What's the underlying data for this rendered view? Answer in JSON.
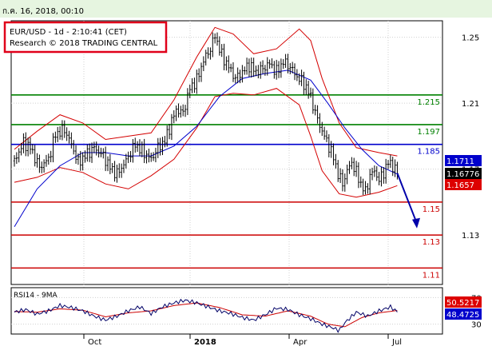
{
  "header": {
    "timestamp": "ก.ค. 16, 2018, 00:10"
  },
  "info_box": {
    "line1": "EUR/USD - 1d - 2:10:41 (CET)",
    "line2": "Research © 2018 TRADING CENTRAL"
  },
  "colors": {
    "header_bg": "#e6f5e0",
    "panel_bg": "#ffffff",
    "info_border": "#e0001a",
    "grid": "#d0d0d0",
    "candle": "#000000",
    "band": "#d40000",
    "ma": "#0000cc",
    "resistance": "#008000",
    "pivot": "#0000cc",
    "support": "#cc0000",
    "arrow": "#0000aa",
    "rsi_line": "#000066",
    "rsi_ma": "#cc0000",
    "tag_blue": "#0000cc",
    "tag_black": "#000000",
    "tag_red": "#dd0000",
    "tag_text": "#ffffff"
  },
  "chart_data": [
    {
      "type": "candlestick",
      "title": "EUR/USD - 1d",
      "ylim": [
        1.1,
        1.26
      ],
      "y_ticks": [
        "1.25",
        "1.21",
        "1.17",
        "1.13"
      ],
      "x_ticks": [
        "Oct",
        "2018",
        "Apr",
        "Jul"
      ],
      "price_path": [
        [
          0,
          1.175
        ],
        [
          8,
          1.186
        ],
        [
          14,
          1.183
        ],
        [
          22,
          1.171
        ],
        [
          30,
          1.176
        ],
        [
          36,
          1.191
        ],
        [
          44,
          1.194
        ],
        [
          50,
          1.185
        ],
        [
          56,
          1.174
        ],
        [
          62,
          1.178
        ],
        [
          70,
          1.183
        ],
        [
          78,
          1.178
        ],
        [
          84,
          1.171
        ],
        [
          90,
          1.167
        ],
        [
          98,
          1.175
        ],
        [
          106,
          1.185
        ],
        [
          112,
          1.181
        ],
        [
          120,
          1.176
        ],
        [
          126,
          1.183
        ],
        [
          132,
          1.187
        ],
        [
          138,
          1.199
        ],
        [
          142,
          1.206
        ],
        [
          148,
          1.204
        ],
        [
          154,
          1.219
        ],
        [
          160,
          1.224
        ],
        [
          166,
          1.236
        ],
        [
          172,
          1.243
        ],
        [
          176,
          1.251
        ],
        [
          182,
          1.239
        ],
        [
          188,
          1.232
        ],
        [
          194,
          1.225
        ],
        [
          200,
          1.229
        ],
        [
          206,
          1.233
        ],
        [
          212,
          1.229
        ],
        [
          218,
          1.231
        ],
        [
          224,
          1.234
        ],
        [
          230,
          1.229
        ],
        [
          236,
          1.235
        ],
        [
          242,
          1.232
        ],
        [
          248,
          1.226
        ],
        [
          254,
          1.222
        ],
        [
          260,
          1.214
        ],
        [
          264,
          1.204
        ],
        [
          270,
          1.193
        ],
        [
          276,
          1.184
        ],
        [
          280,
          1.177
        ],
        [
          284,
          1.167
        ],
        [
          288,
          1.161
        ],
        [
          292,
          1.169
        ],
        [
          296,
          1.174
        ],
        [
          300,
          1.168
        ],
        [
          304,
          1.161
        ],
        [
          308,
          1.156
        ],
        [
          312,
          1.166
        ],
        [
          316,
          1.169
        ],
        [
          320,
          1.163
        ],
        [
          324,
          1.168
        ],
        [
          328,
          1.174
        ],
        [
          332,
          1.172
        ],
        [
          336,
          1.1675
        ]
      ],
      "moving_average": [
        [
          0,
          1.135
        ],
        [
          20,
          1.158
        ],
        [
          40,
          1.172
        ],
        [
          60,
          1.18
        ],
        [
          80,
          1.18
        ],
        [
          100,
          1.178
        ],
        [
          120,
          1.178
        ],
        [
          140,
          1.184
        ],
        [
          160,
          1.196
        ],
        [
          180,
          1.214
        ],
        [
          200,
          1.225
        ],
        [
          220,
          1.228
        ],
        [
          240,
          1.23
        ],
        [
          260,
          1.224
        ],
        [
          275,
          1.21
        ],
        [
          290,
          1.195
        ],
        [
          305,
          1.182
        ],
        [
          320,
          1.172
        ],
        [
          336,
          1.167
        ]
      ],
      "band_upper": [
        [
          0,
          1.182
        ],
        [
          20,
          1.193
        ],
        [
          40,
          1.203
        ],
        [
          60,
          1.198
        ],
        [
          80,
          1.188
        ],
        [
          100,
          1.19
        ],
        [
          120,
          1.192
        ],
        [
          140,
          1.212
        ],
        [
          160,
          1.238
        ],
        [
          176,
          1.256
        ],
        [
          192,
          1.252
        ],
        [
          210,
          1.24
        ],
        [
          230,
          1.243
        ],
        [
          250,
          1.255
        ],
        [
          260,
          1.248
        ],
        [
          270,
          1.225
        ],
        [
          285,
          1.198
        ],
        [
          300,
          1.183
        ],
        [
          320,
          1.18
        ],
        [
          336,
          1.178
        ]
      ],
      "band_lower": [
        [
          0,
          1.162
        ],
        [
          20,
          1.165
        ],
        [
          40,
          1.171
        ],
        [
          60,
          1.168
        ],
        [
          80,
          1.161
        ],
        [
          100,
          1.158
        ],
        [
          120,
          1.166
        ],
        [
          140,
          1.176
        ],
        [
          160,
          1.195
        ],
        [
          176,
          1.214
        ],
        [
          192,
          1.216
        ],
        [
          210,
          1.215
        ],
        [
          230,
          1.219
        ],
        [
          250,
          1.209
        ],
        [
          260,
          1.19
        ],
        [
          270,
          1.169
        ],
        [
          285,
          1.155
        ],
        [
          300,
          1.153
        ],
        [
          320,
          1.156
        ],
        [
          336,
          1.16
        ]
      ],
      "levels": [
        {
          "value": 1.215,
          "label": "1.215",
          "kind": "resistance"
        },
        {
          "value": 1.197,
          "label": "1.197",
          "kind": "resistance"
        },
        {
          "value": 1.185,
          "label": "1.185",
          "kind": "pivot"
        },
        {
          "value": 1.15,
          "label": "1.15",
          "kind": "support"
        },
        {
          "value": 1.13,
          "label": "1.13",
          "kind": "support"
        },
        {
          "value": 1.11,
          "label": "1.11",
          "kind": "support"
        }
      ],
      "price_tags": [
        {
          "value": 1.1711,
          "label": "1.1711",
          "color": "tag_blue"
        },
        {
          "value": 1.16776,
          "label": "1.16776",
          "color": "tag_black"
        },
        {
          "value": 1.1657,
          "label": "1.1657",
          "color": "tag_red"
        }
      ],
      "forecast_arrow": {
        "from": [
          336,
          1.1675
        ],
        "to": [
          342,
          1.137
        ]
      }
    },
    {
      "type": "line",
      "title": "RSI14 - 9MA",
      "ylim": [
        15,
        85
      ],
      "y_ticks": [
        "70",
        "30"
      ],
      "rsi": [
        [
          0,
          48
        ],
        [
          10,
          52
        ],
        [
          20,
          45
        ],
        [
          30,
          50
        ],
        [
          40,
          58
        ],
        [
          50,
          55
        ],
        [
          60,
          50
        ],
        [
          70,
          42
        ],
        [
          80,
          36
        ],
        [
          90,
          42
        ],
        [
          100,
          50
        ],
        [
          110,
          56
        ],
        [
          120,
          46
        ],
        [
          130,
          56
        ],
        [
          140,
          62
        ],
        [
          150,
          66
        ],
        [
          160,
          62
        ],
        [
          170,
          56
        ],
        [
          180,
          50
        ],
        [
          190,
          46
        ],
        [
          200,
          40
        ],
        [
          210,
          36
        ],
        [
          220,
          44
        ],
        [
          230,
          54
        ],
        [
          240,
          52
        ],
        [
          250,
          44
        ],
        [
          260,
          38
        ],
        [
          270,
          30
        ],
        [
          280,
          24
        ],
        [
          285,
          20
        ],
        [
          290,
          32
        ],
        [
          300,
          48
        ],
        [
          310,
          42
        ],
        [
          320,
          50
        ],
        [
          330,
          56
        ],
        [
          336,
          48.4725
        ]
      ],
      "rsi_ma": [
        [
          0,
          49
        ],
        [
          20,
          48
        ],
        [
          40,
          53
        ],
        [
          60,
          51
        ],
        [
          80,
          41
        ],
        [
          100,
          47
        ],
        [
          120,
          50
        ],
        [
          140,
          58
        ],
        [
          160,
          62
        ],
        [
          180,
          55
        ],
        [
          200,
          44
        ],
        [
          220,
          42
        ],
        [
          240,
          50
        ],
        [
          260,
          42
        ],
        [
          275,
          30
        ],
        [
          290,
          26
        ],
        [
          305,
          40
        ],
        [
          320,
          47
        ],
        [
          336,
          50.5217
        ]
      ],
      "tags": [
        {
          "value": 50.5217,
          "label": "50.5217",
          "color": "tag_red"
        },
        {
          "value": 48.4725,
          "label": "48.4725",
          "color": "tag_blue"
        }
      ]
    }
  ]
}
